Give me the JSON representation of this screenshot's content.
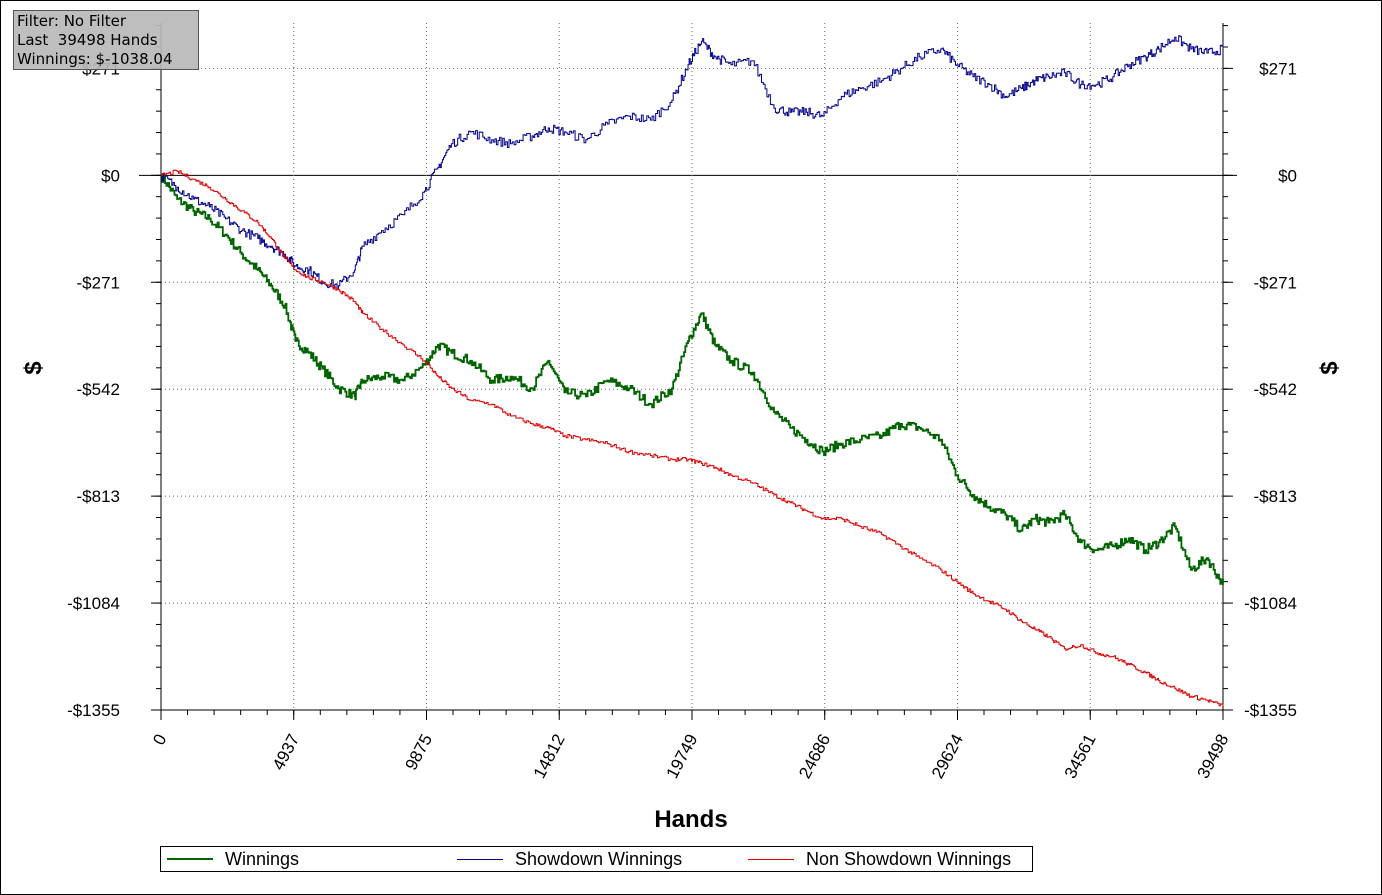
{
  "info_box": {
    "filter": "Filter: No Filter",
    "hands": "Last  39498 Hands",
    "winnings": "Winnings: $-1038.04"
  },
  "chart_data": {
    "type": "line",
    "xlabel": "Hands",
    "ylabel": "$",
    "xlim": [
      0,
      39498
    ],
    "ylim": [
      -1355,
      386
    ],
    "x_ticks": [
      0,
      4937,
      9875,
      14812,
      19749,
      24686,
      29624,
      34561,
      39498
    ],
    "y_ticks": [
      271,
      0,
      -271,
      -542,
      -813,
      -1084,
      -1355
    ],
    "y_tick_labels": [
      "$271",
      "$0",
      "-$271",
      "-$542",
      "-$813",
      "-$1084",
      "-$1355"
    ],
    "grid": true,
    "legend_position": "bottom",
    "series": [
      {
        "name": "Winnings",
        "color": "#006400",
        "x": [
          0,
          600,
          1200,
          1800,
          2400,
          3000,
          3600,
          4100,
          4600,
          5000,
          5500,
          6000,
          6600,
          7200,
          7500,
          8200,
          9000,
          9800,
          10300,
          10800,
          11500,
          12300,
          13000,
          13800,
          14400,
          15000,
          15800,
          16600,
          17400,
          18200,
          19000,
          19600,
          20100,
          20600,
          21200,
          22000,
          22800,
          23400,
          24000,
          24600,
          25300,
          26000,
          26800,
          27500,
          28200,
          29000,
          29600,
          30200,
          30800,
          31400,
          32000,
          32500,
          33000,
          33600,
          34200,
          34800,
          35400,
          36000,
          36600,
          37100,
          37700,
          38300,
          38900,
          39498
        ],
        "values": [
          0,
          -60,
          -90,
          -110,
          -150,
          -200,
          -240,
          -280,
          -330,
          -420,
          -450,
          -490,
          -540,
          -560,
          -520,
          -510,
          -520,
          -480,
          -430,
          -450,
          -470,
          -520,
          -510,
          -540,
          -470,
          -550,
          -560,
          -520,
          -540,
          -580,
          -540,
          -420,
          -350,
          -430,
          -470,
          -500,
          -600,
          -640,
          -670,
          -700,
          -680,
          -670,
          -660,
          -630,
          -640,
          -670,
          -760,
          -810,
          -840,
          -860,
          -900,
          -870,
          -880,
          -860,
          -930,
          -950,
          -940,
          -920,
          -950,
          -930,
          -890,
          -1000,
          -970,
          -1038
        ]
      },
      {
        "name": "Showdown Winnings",
        "color": "#00008b",
        "x": [
          0,
          600,
          1200,
          1800,
          2400,
          3000,
          3600,
          4100,
          4600,
          5000,
          5500,
          6000,
          6600,
          7200,
          7500,
          8200,
          9000,
          9800,
          10300,
          10800,
          11500,
          12300,
          13000,
          13800,
          14400,
          15000,
          15800,
          16600,
          17400,
          18200,
          19000,
          19600,
          20100,
          20600,
          21200,
          22000,
          22800,
          23400,
          24000,
          24600,
          25300,
          26000,
          26800,
          27500,
          28200,
          29000,
          29600,
          30200,
          30800,
          31400,
          32000,
          32500,
          33000,
          33600,
          34200,
          34800,
          35400,
          36000,
          36600,
          37100,
          37700,
          38300,
          38900,
          39498
        ],
        "values": [
          0,
          -30,
          -60,
          -80,
          -110,
          -140,
          -160,
          -180,
          -200,
          -230,
          -240,
          -270,
          -280,
          -240,
          -180,
          -140,
          -100,
          -40,
          20,
          80,
          110,
          90,
          80,
          100,
          120,
          110,
          90,
          130,
          150,
          140,
          190,
          280,
          340,
          300,
          280,
          290,
          170,
          160,
          160,
          150,
          200,
          220,
          240,
          270,
          300,
          320,
          280,
          250,
          230,
          200,
          220,
          240,
          250,
          260,
          230,
          230,
          250,
          280,
          300,
          320,
          350,
          320,
          310,
          320
        ]
      },
      {
        "name": "Non Showdown Winnings",
        "color": "#dd0000",
        "x": [
          0,
          600,
          1200,
          1800,
          2400,
          3000,
          3600,
          4100,
          4600,
          5000,
          5500,
          6000,
          6600,
          7200,
          7500,
          8200,
          9000,
          9800,
          10300,
          10800,
          11500,
          12300,
          13000,
          13800,
          14400,
          15000,
          15800,
          16600,
          17400,
          18200,
          19000,
          19600,
          20100,
          20600,
          21200,
          22000,
          22800,
          23400,
          24000,
          24600,
          25300,
          26000,
          26800,
          27500,
          28200,
          29000,
          29600,
          30200,
          30800,
          31400,
          32000,
          32500,
          33000,
          33600,
          34200,
          34800,
          35400,
          36000,
          36600,
          37100,
          37700,
          38300,
          38900,
          39498
        ],
        "values": [
          0,
          10,
          -10,
          -30,
          -60,
          -90,
          -120,
          -160,
          -210,
          -240,
          -260,
          -270,
          -290,
          -320,
          -350,
          -390,
          -430,
          -470,
          -510,
          -540,
          -570,
          -580,
          -610,
          -630,
          -640,
          -660,
          -670,
          -680,
          -700,
          -710,
          -720,
          -720,
          -730,
          -740,
          -760,
          -780,
          -810,
          -830,
          -850,
          -870,
          -870,
          -890,
          -910,
          -940,
          -970,
          -1000,
          -1030,
          -1060,
          -1080,
          -1100,
          -1130,
          -1150,
          -1170,
          -1200,
          -1190,
          -1210,
          -1220,
          -1240,
          -1260,
          -1280,
          -1300,
          -1320,
          -1330,
          -1345
        ]
      }
    ]
  }
}
